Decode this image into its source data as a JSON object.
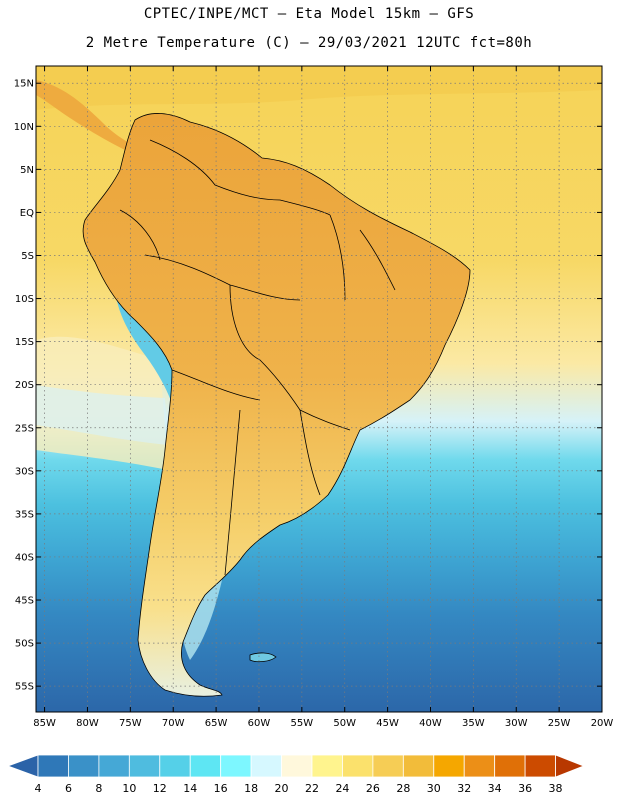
{
  "header": {
    "line1": "CPTEC/INPE/MCT –  Eta Model 15km – GFS",
    "line2": "2 Metre Temperature (C) – 29/03/2021 12UTC fct=80h"
  },
  "map": {
    "lon_range": [
      -86,
      -20
    ],
    "lat_range": [
      -58,
      17
    ],
    "lat_labels": [
      "15N",
      "10N",
      "5N",
      "EQ",
      "5S",
      "10S",
      "15S",
      "20S",
      "25S",
      "30S",
      "35S",
      "40S",
      "45S",
      "50S",
      "55S"
    ],
    "lat_values": [
      15,
      10,
      5,
      0,
      -5,
      -10,
      -15,
      -20,
      -25,
      -30,
      -35,
      -40,
      -45,
      -50,
      -55
    ],
    "lon_labels": [
      "85W",
      "80W",
      "75W",
      "70W",
      "65W",
      "60W",
      "55W",
      "50W",
      "45W",
      "40W",
      "35W",
      "30W",
      "25W",
      "20W"
    ],
    "lon_values": [
      -85,
      -80,
      -75,
      -70,
      -65,
      -60,
      -55,
      -50,
      -45,
      -40,
      -35,
      -30,
      -25,
      -20
    ]
  },
  "colorbar": {
    "labels": [
      "4",
      "6",
      "8",
      "10",
      "12",
      "14",
      "16",
      "18",
      "20",
      "22",
      "24",
      "26",
      "28",
      "30",
      "32",
      "34",
      "36",
      "38"
    ],
    "colors": [
      "#2b63a8",
      "#2f78b8",
      "#3a91c8",
      "#45a8d6",
      "#4fbcdf",
      "#55d0e8",
      "#5ee6f3",
      "#7df7ff",
      "#d6f8ff",
      "#fff8dc",
      "#fff48e",
      "#fbe16c",
      "#f6cd55",
      "#f2bc3a",
      "#f5a700",
      "#ec8f17",
      "#e07007",
      "#cc4b00",
      "#b83800"
    ]
  }
}
